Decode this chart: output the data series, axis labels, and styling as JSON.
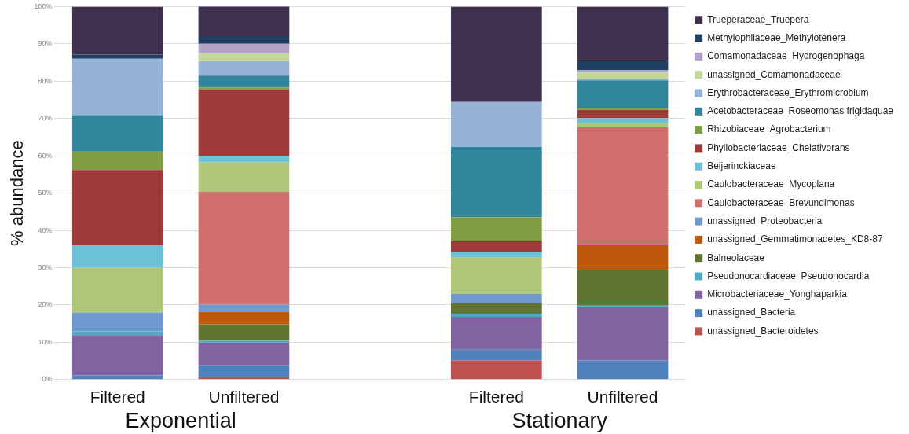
{
  "chart_data": {
    "type": "bar",
    "stacked": true,
    "ylabel": "% abundance",
    "categories": [
      "Filtered",
      "Unfiltered",
      null,
      "Filtered",
      "Unfiltered"
    ],
    "annotations": [
      "Exponential",
      "Stationary"
    ],
    "ylim": [
      0,
      100
    ],
    "yticks": [
      {
        "value": 0,
        "label": "0%"
      },
      {
        "value": 10,
        "label": "10%"
      },
      {
        "value": 20,
        "label": "20%"
      },
      {
        "value": 30,
        "label": "30%"
      },
      {
        "value": 40,
        "label": "40%"
      },
      {
        "value": 50,
        "label": "50%"
      },
      {
        "value": 60,
        "label": "60%"
      },
      {
        "value": 70,
        "label": "70%"
      },
      {
        "value": 80,
        "label": "80%"
      },
      {
        "value": 90,
        "label": "90%"
      },
      {
        "value": 100,
        "label": "100%"
      }
    ],
    "grid": "y",
    "legend": "right",
    "series": [
      {
        "name": "unassigned_Bacteroidetes",
        "color": "#c0504d",
        "values": [
          0,
          0.7,
          null,
          5.1,
          0
        ]
      },
      {
        "name": "unassigned_Bacteria",
        "color": "#4f81bd",
        "values": [
          1.1,
          3.1,
          null,
          2.9,
          5.1
        ]
      },
      {
        "name": "Microbacteriaceae_Yonghaparkia",
        "color": "#8064a2",
        "values": [
          10.8,
          6.1,
          null,
          8.8,
          14.4
        ]
      },
      {
        "name": "Pseudonocardiaceae_Pseudonocardia",
        "color": "#4bacc6",
        "values": [
          1.0,
          0.5,
          null,
          0.7,
          0.3
        ]
      },
      {
        "name": "Balneolaceae",
        "color": "#5f7530",
        "values": [
          0,
          4.4,
          null,
          3.0,
          9.6
        ]
      },
      {
        "name": "unassigned_Gemmatimonadetes_KD8-87",
        "color": "#c0580b",
        "values": [
          0,
          3.4,
          null,
          0,
          6.6
        ]
      },
      {
        "name": "unassigned_Proteobacteria",
        "color": "#7099cf",
        "values": [
          5.1,
          1.9,
          null,
          2.5,
          0.2
        ]
      },
      {
        "name": "Caulobacteraceae_Brevundimonas",
        "color": "#d06f6c",
        "values": [
          0,
          30.3,
          null,
          0,
          31.4
        ]
      },
      {
        "name": "Caulobacteraceae_Mycoplana",
        "color": "#aec776",
        "values": [
          12.0,
          7.9,
          null,
          9.7,
          1.3
        ]
      },
      {
        "name": "Beijerinckiaceae",
        "color": "#6cc0d8",
        "values": [
          6.0,
          1.6,
          null,
          1.6,
          1.2
        ]
      },
      {
        "name": "Phyllobacteriaceae_Chelativorans",
        "color": "#9e3a38",
        "values": [
          20.2,
          17.9,
          null,
          2.8,
          2.2
        ]
      },
      {
        "name": "Rhizobiaceae_Agrobacterium",
        "color": "#7f9d41",
        "values": [
          5.1,
          0.5,
          null,
          6.4,
          0.4
        ]
      },
      {
        "name": "Acetobacteraceae_Roseomonas frigidaquae",
        "color": "#31859c",
        "values": [
          9.6,
          3.2,
          null,
          18.9,
          7.5
        ]
      },
      {
        "name": "Erythrobacteraceae_Erythromicrobium",
        "color": "#95b3d7",
        "values": [
          15.1,
          3.9,
          null,
          12.0,
          0.5
        ]
      },
      {
        "name": "unassigned_Comamonadaceae",
        "color": "#c3d69b",
        "values": [
          0,
          2.1,
          null,
          0,
          1.6
        ]
      },
      {
        "name": "Comamonadaceae_Hydrogenophaga",
        "color": "#b3a2c7",
        "values": [
          0,
          2.5,
          null,
          0,
          0.7
        ]
      },
      {
        "name": "Methylophilaceae_Methylotenera",
        "color": "#1f3f60",
        "values": [
          1.1,
          2.1,
          null,
          0,
          2.5
        ]
      },
      {
        "name": "Trueperaceae_Truepera",
        "color": "#40324f",
        "values": [
          12.9,
          8.0,
          null,
          25.6,
          14.5
        ]
      }
    ]
  }
}
